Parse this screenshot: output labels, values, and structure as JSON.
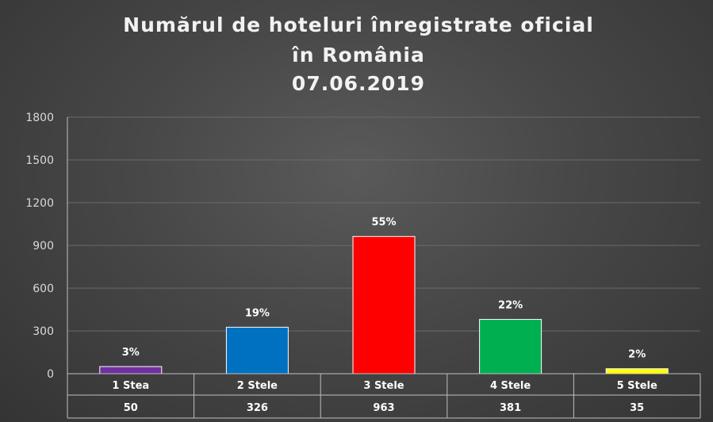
{
  "chart_data": {
    "type": "bar",
    "title_lines": [
      "Numărul de hoteluri înregistrate oficial",
      "în România",
      "07.06.2019"
    ],
    "categories": [
      "1 Stea",
      "2 Stele",
      "3 Stele",
      "4 Stele",
      "5 Stele"
    ],
    "values": [
      50,
      326,
      963,
      381,
      35
    ],
    "value_labels": [
      "50",
      "326",
      "963",
      "381",
      "35"
    ],
    "data_labels": [
      "3%",
      "19%",
      "55%",
      "22%",
      "2%"
    ],
    "bar_colors": [
      "#7030a0",
      "#0070c0",
      "#ff0000",
      "#00b050",
      "#ffff00"
    ],
    "yticks": [
      0,
      300,
      600,
      900,
      1200,
      1500,
      1800
    ],
    "ylim": [
      0,
      1800
    ],
    "grid": true,
    "legend": "none",
    "data_table": true,
    "xlabel": "",
    "ylabel": ""
  }
}
